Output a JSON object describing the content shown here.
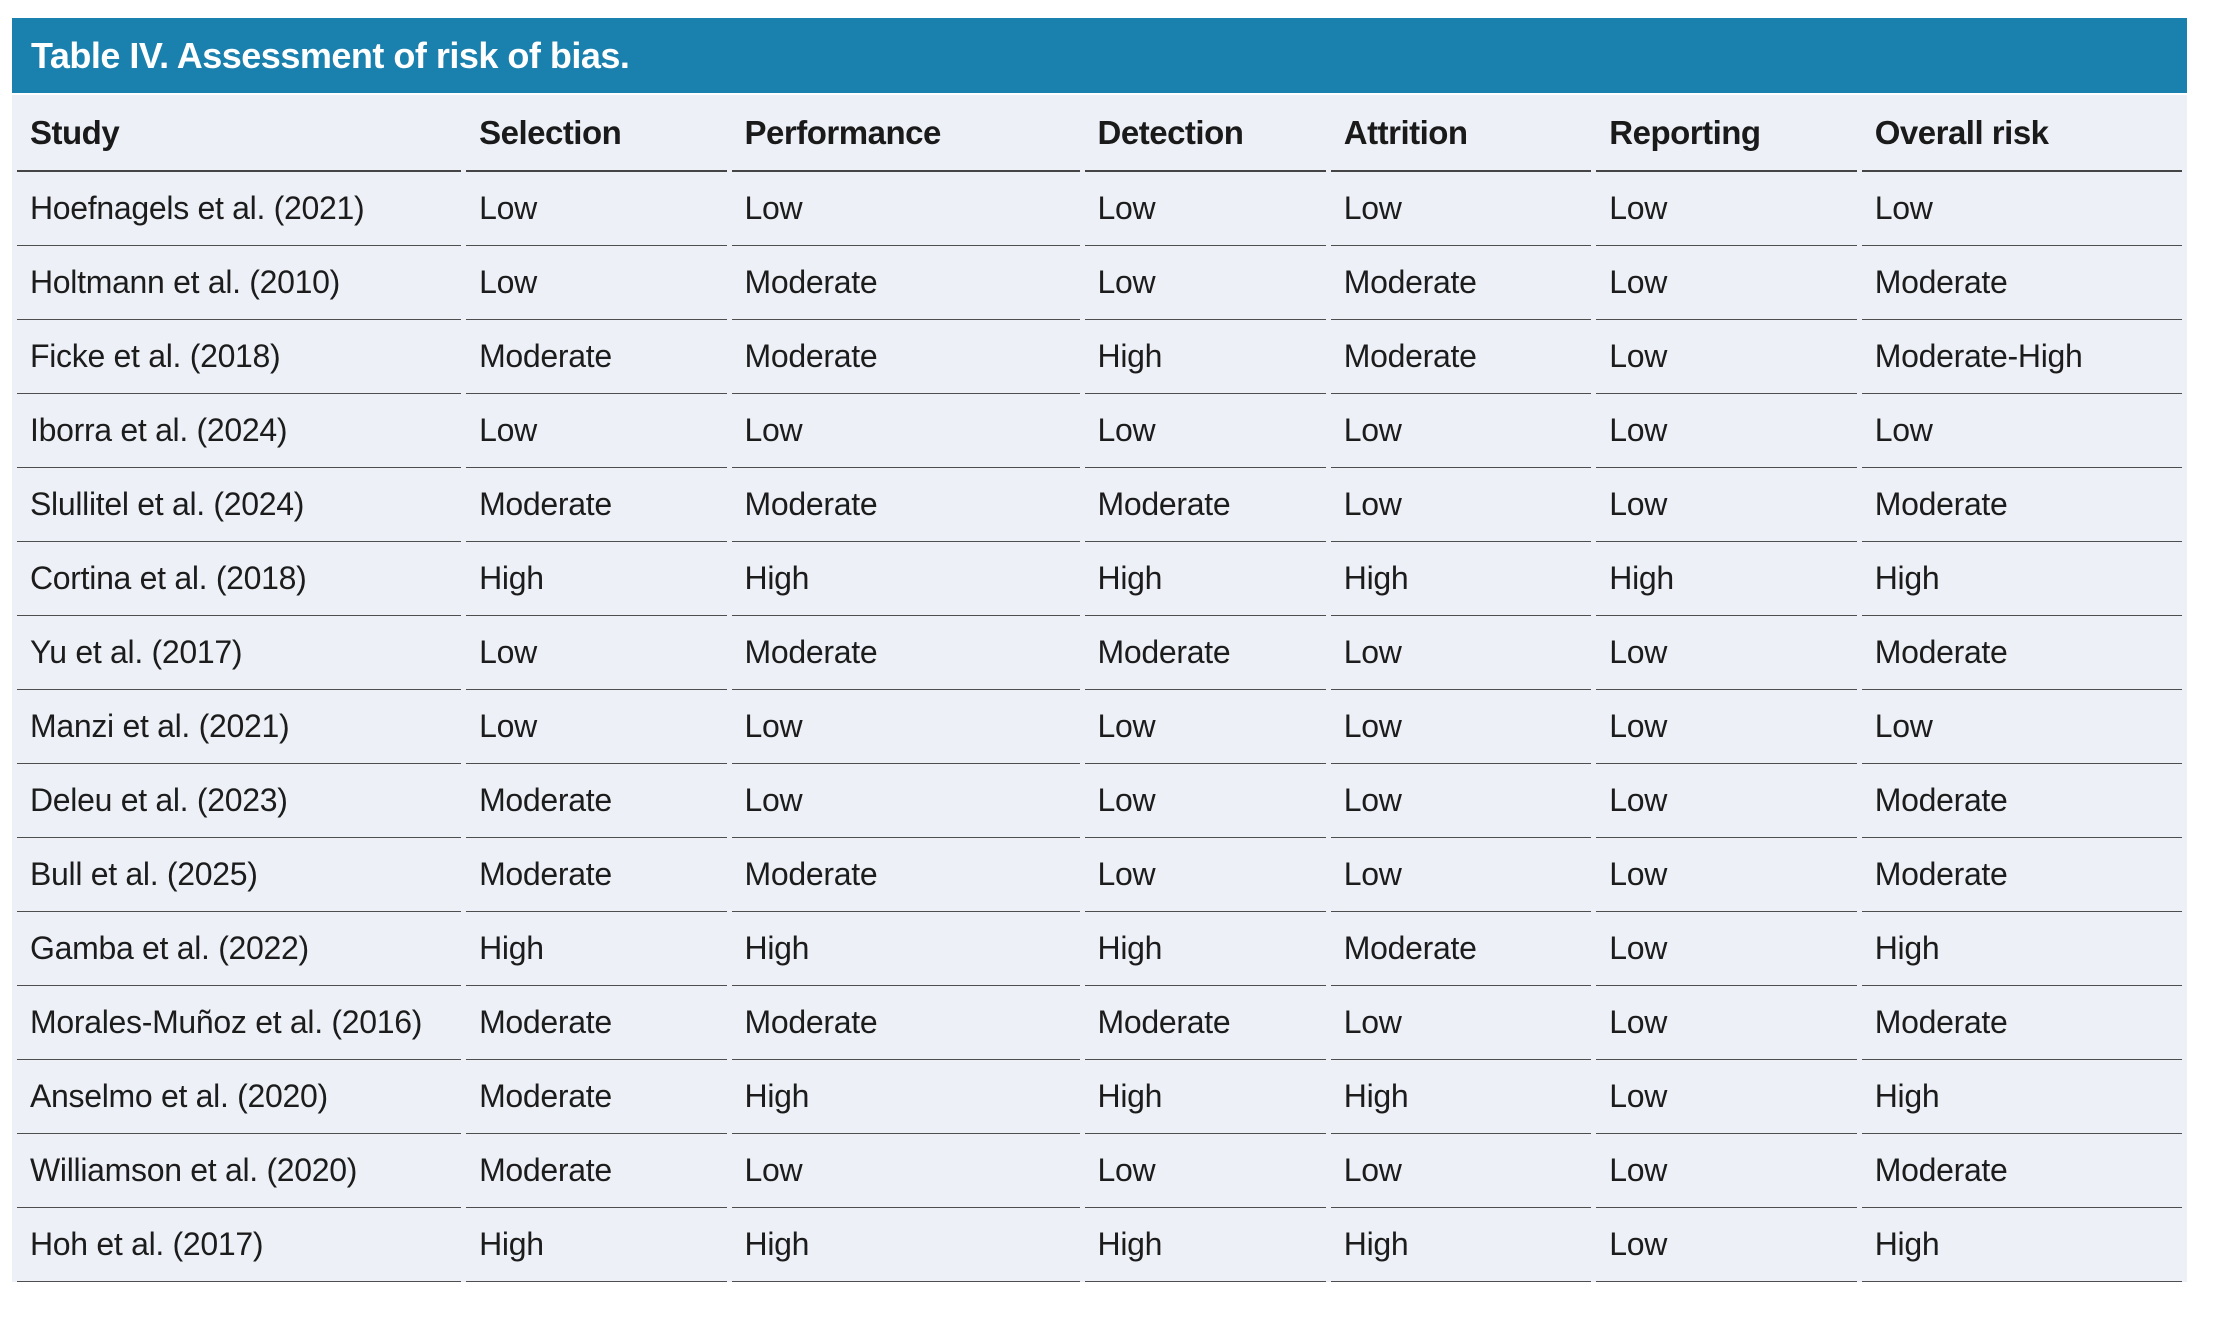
{
  "table": {
    "title": "Table IV. Assessment of risk of bias.",
    "columns": [
      "Study",
      "Selection",
      "Performance",
      "Detection",
      "Attrition",
      "Reporting",
      "Overall risk"
    ],
    "rows": [
      [
        "Hoefnagels et al. (2021)",
        "Low",
        "Low",
        "Low",
        "Low",
        "Low",
        "Low"
      ],
      [
        "Holtmann et al. (2010)",
        "Low",
        "Moderate",
        "Low",
        "Moderate",
        "Low",
        "Moderate"
      ],
      [
        "Ficke et al. (2018)",
        "Moderate",
        "Moderate",
        "High",
        "Moderate",
        "Low",
        "Moderate-High"
      ],
      [
        "Iborra et al. (2024)",
        "Low",
        "Low",
        "Low",
        "Low",
        "Low",
        "Low"
      ],
      [
        "Slullitel et al. (2024)",
        "Moderate",
        "Moderate",
        "Moderate",
        "Low",
        "Low",
        "Moderate"
      ],
      [
        "Cortina et al. (2018)",
        "High",
        "High",
        "High",
        "High",
        "High",
        "High"
      ],
      [
        "Yu et al. (2017)",
        "Low",
        "Moderate",
        "Moderate",
        "Low",
        "Low",
        "Moderate"
      ],
      [
        "Manzi et al. (2021)",
        "Low",
        "Low",
        "Low",
        "Low",
        "Low",
        "Low"
      ],
      [
        "Deleu et al. (2023)",
        "Moderate",
        "Low",
        "Low",
        "Low",
        "Low",
        "Moderate"
      ],
      [
        "Bull et al. (2025)",
        "Moderate",
        "Moderate",
        "Low",
        "Low",
        "Low",
        "Moderate"
      ],
      [
        "Gamba et al. (2022)",
        "High",
        "High",
        "High",
        "Moderate",
        "Low",
        "High"
      ],
      [
        "Morales-Muñoz et al. (2016)",
        "Moderate",
        "Moderate",
        "Moderate",
        "Low",
        "Low",
        "Moderate"
      ],
      [
        "Anselmo et al. (2020)",
        "Moderate",
        "High",
        "High",
        "High",
        "Low",
        "High"
      ],
      [
        "Williamson et al. (2020)",
        "Moderate",
        "Low",
        "Low",
        "Low",
        "Low",
        "Moderate"
      ],
      [
        "Hoh et al. (2017)",
        "High",
        "High",
        "High",
        "High",
        "Low",
        "High"
      ]
    ],
    "column_widths": [
      "20.8%",
      "12.2%",
      "16.3%",
      "11.3%",
      "12.2%",
      "12.2%",
      "15.0%"
    ],
    "colors": {
      "title_bar": "#1a80ad",
      "title_text": "#ffffff",
      "body_background": "#edf1f7",
      "header_divider": "#454545",
      "row_divider": "#4e4e4e",
      "text": "#1c1c1c"
    }
  }
}
